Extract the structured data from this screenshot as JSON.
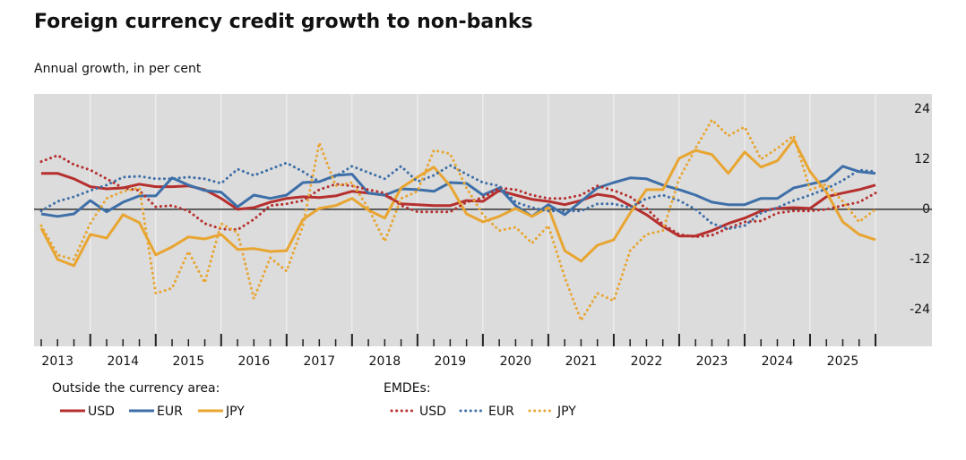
{
  "chart_data": {
    "type": "line",
    "title": "Foreign currency credit growth to non-banks",
    "subtitle": "Annual growth, in per cent",
    "categories": [
      null,
      "2013",
      null,
      null,
      null,
      "2014",
      null,
      null,
      null,
      "2015",
      null,
      null,
      null,
      "2016",
      null,
      null,
      null,
      "2017",
      null,
      null,
      null,
      "2018",
      null,
      null,
      null,
      "2019",
      null,
      null,
      null,
      "2020",
      null,
      null,
      null,
      "2021",
      null,
      null,
      null,
      "2022",
      null,
      null,
      null,
      "2023",
      null,
      null,
      null,
      "2024",
      null,
      null,
      null,
      "2025",
      null,
      null
    ],
    "ylim": [
      -32.8,
      27.6
    ],
    "yticks": [
      24,
      12,
      0,
      -12,
      -24
    ],
    "grid": true,
    "legend_groups": [
      {
        "title": "Outside the currency area:",
        "style": "solid"
      },
      {
        "title": "EMDEs:",
        "style": "dotted"
      }
    ],
    "series": [
      {
        "name": "USD",
        "color": "#b5302e",
        "style": "solid",
        "values": [
          8.6,
          8.6,
          7.3,
          5.4,
          4.9,
          5.1,
          6,
          5.4,
          5.4,
          5.6,
          4.7,
          2.6,
          0,
          0.4,
          1.7,
          2.6,
          3,
          2.8,
          3.2,
          4.3,
          3.9,
          3.4,
          1.3,
          1.1,
          0.9,
          0.9,
          2.1,
          1.9,
          4.5,
          3.4,
          2.4,
          1.9,
          1.1,
          2.1,
          3.6,
          3,
          0.9,
          -1.3,
          -4.1,
          -6.4,
          -6.4,
          -5.1,
          -3.4,
          -2.1,
          -0.4,
          0.2,
          0.4,
          0.2,
          3,
          3.9,
          4.7,
          5.8
        ]
      },
      {
        "name": "EUR",
        "color": "#3e6fa8",
        "style": "solid",
        "values": [
          -1.1,
          -1.7,
          -1.1,
          2.1,
          -0.6,
          1.7,
          3.2,
          3.2,
          7.5,
          5.8,
          4.5,
          4.1,
          0.6,
          3.4,
          2.6,
          3.4,
          6.4,
          6.6,
          8.1,
          8.4,
          3.9,
          3.4,
          4.9,
          4.7,
          4.3,
          6.4,
          6.2,
          3.4,
          5.1,
          0.9,
          -1.7,
          1.1,
          -1.3,
          1.9,
          5.1,
          6.4,
          7.5,
          7.3,
          5.8,
          4.7,
          3.4,
          1.7,
          1.1,
          1.1,
          2.6,
          2.6,
          5.1,
          6,
          6.9,
          10.3,
          9,
          8.6
        ]
      },
      {
        "name": "JPY",
        "color": "#e8a531",
        "style": "solid",
        "values": [
          -4.5,
          -12,
          -13.5,
          -6,
          -6.9,
          -1.3,
          -3.2,
          -10.9,
          -9,
          -6.6,
          -7.1,
          -6,
          -9.6,
          -9.4,
          -10.1,
          -9.9,
          -2.4,
          0.2,
          0.9,
          2.6,
          -0.2,
          -2.1,
          5.1,
          7.7,
          10.1,
          5.6,
          -1.1,
          -3,
          -1.7,
          0.2,
          -1.7,
          0.4,
          -9.9,
          -12.4,
          -8.6,
          -7.3,
          -0.9,
          4.7,
          4.7,
          12.2,
          14.1,
          13.1,
          8.6,
          13.7,
          10.1,
          11.6,
          16.7,
          9,
          4.1,
          -3,
          -6,
          -7.3
        ]
      },
      {
        "name": "USD",
        "color": "#b5302e",
        "style": "dotted",
        "values": [
          11.4,
          12.9,
          10.7,
          9.4,
          7.3,
          5.1,
          4.5,
          0.6,
          0.9,
          -0.4,
          -3.4,
          -4.7,
          -4.9,
          -2.4,
          0.9,
          1.3,
          2.1,
          4.7,
          6,
          5.6,
          4.7,
          3.9,
          0.9,
          -0.6,
          -0.6,
          -0.6,
          1.7,
          2.8,
          5.1,
          4.7,
          3.4,
          2.6,
          2.6,
          3.4,
          5.6,
          4.5,
          3,
          0.2,
          -3.6,
          -6,
          -6.6,
          -6.2,
          -4.5,
          -3,
          -2.8,
          -0.9,
          -0.4,
          -0.4,
          0,
          0.9,
          1.7,
          3.9
        ]
      },
      {
        "name": "EUR",
        "color": "#3e6fa8",
        "style": "dotted",
        "values": [
          -0.4,
          1.9,
          3,
          4.5,
          5.8,
          7.7,
          7.9,
          7.3,
          7.3,
          7.7,
          7.3,
          6.2,
          9.6,
          8.1,
          9.6,
          11.1,
          9,
          6.6,
          7.9,
          10.3,
          8.8,
          7.3,
          10.3,
          6.6,
          8.1,
          10.5,
          8.4,
          6.4,
          5.6,
          1.7,
          0.4,
          -0.4,
          -0.4,
          -0.4,
          1.3,
          1.3,
          0.4,
          2.6,
          3.4,
          2.1,
          0,
          -3.4,
          -4.7,
          -3.9,
          -0.9,
          0.4,
          2.1,
          3.4,
          4.9,
          6.9,
          9.4,
          9
        ]
      },
      {
        "name": "JPY",
        "color": "#e8a531",
        "style": "dotted",
        "values": [
          -3.9,
          -10.9,
          -12,
          -3.4,
          2.6,
          4.3,
          5.1,
          -20.1,
          -18.9,
          -10.1,
          -17.6,
          -3.4,
          -5.6,
          -21.4,
          -11.6,
          -14.8,
          -3.9,
          15.9,
          5.6,
          6.4,
          0.2,
          -7.7,
          2.6,
          4.3,
          14.1,
          13.3,
          5.1,
          -1.3,
          -5.1,
          -4.3,
          -8.1,
          -3.9,
          -16.3,
          -26.6,
          -20.1,
          -21.9,
          -9.9,
          -6,
          -5.1,
          7.3,
          14.6,
          21.4,
          17.6,
          19.7,
          12,
          14.6,
          17.6,
          4.7,
          6,
          1.9,
          -3,
          0
        ]
      }
    ]
  }
}
